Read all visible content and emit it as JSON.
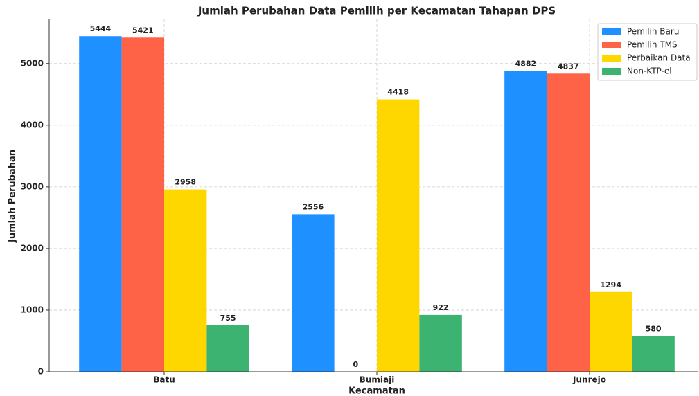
{
  "chart_data": {
    "type": "bar",
    "title": "Jumlah Perubahan Data Pemilih per Kecamatan Tahapan DPS",
    "x_label": "Kecamatan",
    "y_label": "Jumlah Perubahan",
    "categories": [
      "Batu",
      "Bumiaji",
      "Junrejo"
    ],
    "series": [
      {
        "name": "Pemilih Baru",
        "color": "#1e90ff",
        "values": [
          5444,
          2556,
          4882
        ]
      },
      {
        "name": "Pemilih TMS",
        "color": "#ff6347",
        "values": [
          5421,
          0,
          4837
        ]
      },
      {
        "name": "Perbaikan Data",
        "color": "#ffd700",
        "values": [
          2958,
          4418,
          1294
        ]
      },
      {
        "name": "Non-KTP-el",
        "color": "#3cb371",
        "values": [
          755,
          922,
          580
        ]
      }
    ],
    "ylim": [
      0,
      5716
    ],
    "yticks": [
      0,
      1000,
      2000,
      3000,
      4000,
      5000
    ],
    "grid": true,
    "legend": "upper right"
  }
}
